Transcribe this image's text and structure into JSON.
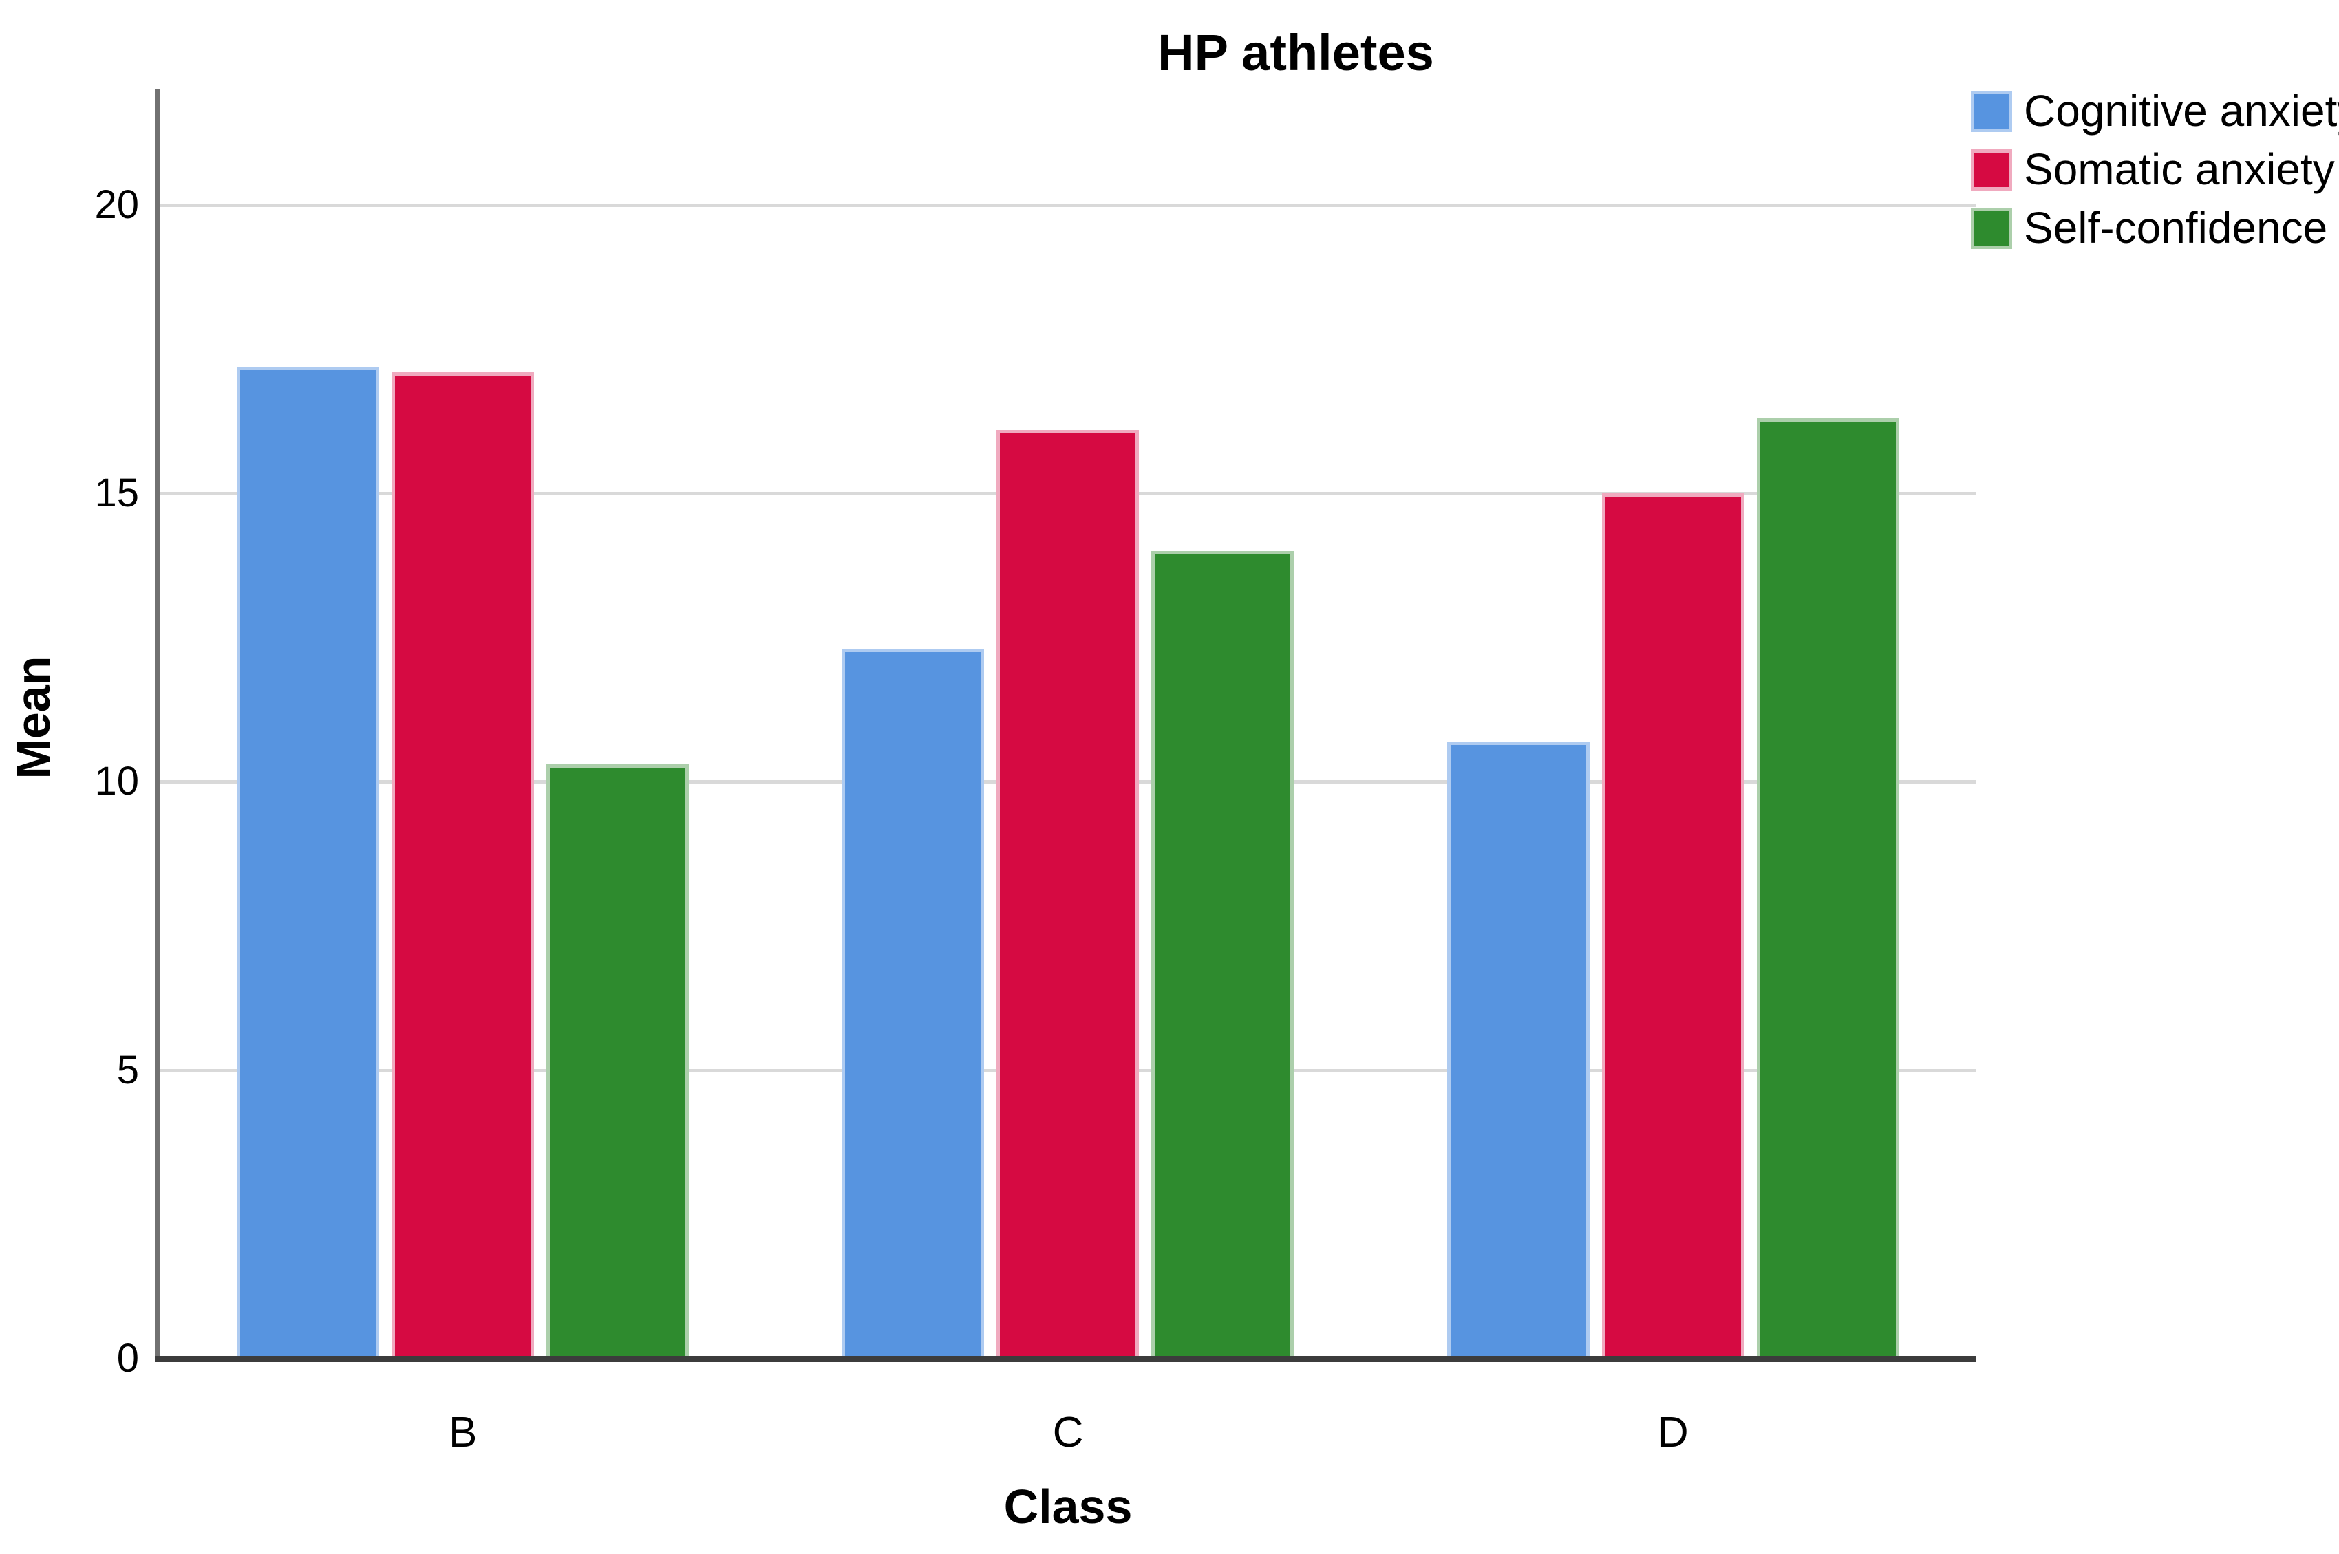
{
  "chart_data": {
    "type": "bar",
    "title": "HP athletes",
    "xlabel": "Class",
    "ylabel": "Mean",
    "categories": [
      "B",
      "C",
      "D"
    ],
    "series": [
      {
        "name": "Cognitive anxiety",
        "values": [
          17.2,
          12.3,
          10.7
        ],
        "color": "#5794E0",
        "edge_color": "#AECBF1"
      },
      {
        "name": "Somatic anxiety",
        "values": [
          17.1,
          16.1,
          15.0
        ],
        "color": "#D60A42",
        "edge_color": "#F0AABF"
      },
      {
        "name": "Self-confidence",
        "values": [
          10.3,
          14.0,
          16.3
        ],
        "color": "#2E8B2E",
        "edge_color": "#ACCFAB"
      }
    ],
    "ylim": [
      0,
      22
    ],
    "yticks": [
      0,
      5,
      10,
      15,
      20
    ],
    "grid": true,
    "legend_position": "top-right",
    "colors": {
      "gridline": "#D9D9D9",
      "y_axis_line": "#717171",
      "x_axis_line": "#3C3C3C",
      "text": "#000000",
      "background": "#FFFFFF"
    }
  }
}
